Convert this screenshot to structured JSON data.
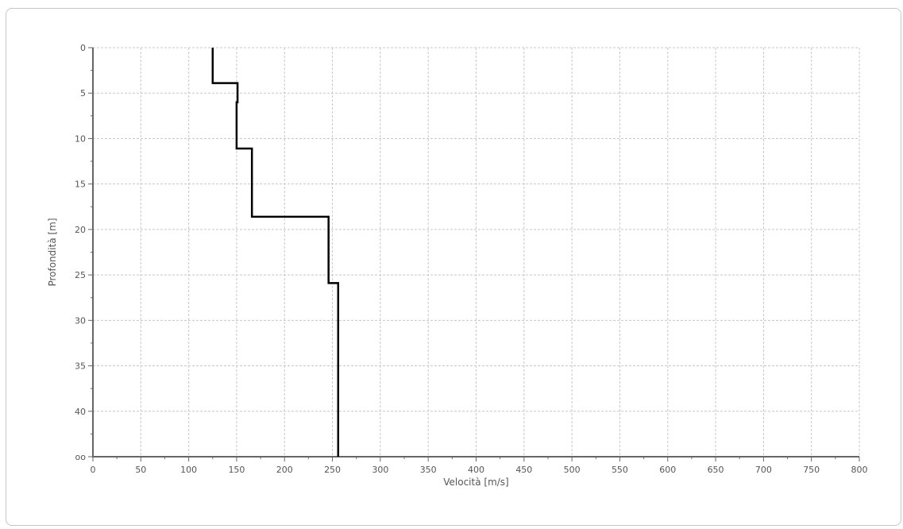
{
  "chart_data": {
    "type": "line",
    "title": "",
    "xlabel": "Velocità [m/s]",
    "ylabel": "Profondità [m]",
    "xlim": [
      0,
      800
    ],
    "ylim": [
      0,
      45
    ],
    "y_inverted": true,
    "grid": true,
    "x_ticks": [
      0,
      50,
      100,
      150,
      200,
      250,
      300,
      350,
      400,
      450,
      500,
      550,
      600,
      650,
      700,
      750,
      800
    ],
    "x_tick_labels": [
      "0",
      "50",
      "100",
      "150",
      "200",
      "250",
      "300",
      "350",
      "400",
      "450",
      "500",
      "550",
      "600",
      "650",
      "700",
      "750",
      "800"
    ],
    "y_ticks": [
      0,
      5,
      10,
      15,
      20,
      25,
      30,
      35,
      40,
      45
    ],
    "y_tick_labels": [
      "0",
      "5",
      "10",
      "15",
      "20",
      "25",
      "30",
      "35",
      "40",
      "oo"
    ],
    "series": [
      {
        "color": "#000000",
        "points": [
          [
            125,
            0
          ],
          [
            125,
            3.9
          ],
          [
            151,
            3.9
          ],
          [
            151,
            6.0
          ],
          [
            150,
            6.0
          ],
          [
            150,
            11.1
          ],
          [
            166,
            11.1
          ],
          [
            166,
            18.6
          ],
          [
            246,
            18.6
          ],
          [
            246,
            25.9
          ],
          [
            256,
            25.9
          ],
          [
            256,
            45
          ]
        ]
      }
    ]
  }
}
